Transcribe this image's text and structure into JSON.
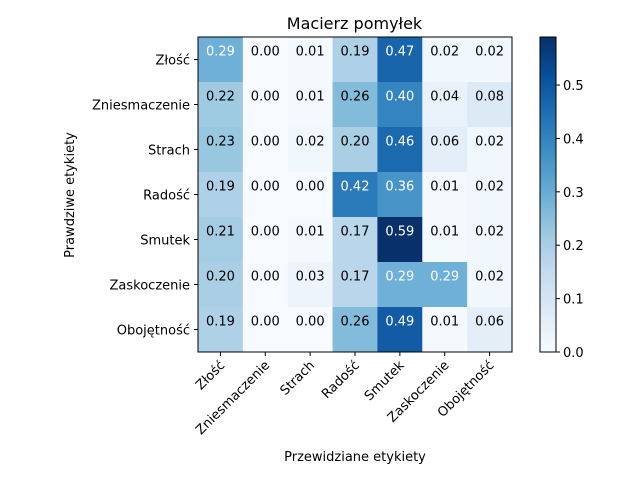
{
  "chart_data": {
    "type": "heatmap",
    "title": "Macierz pomyłek",
    "xlabel": "Przewidziane etykiety",
    "ylabel": "Prawdziwe etykiety",
    "x_categories": [
      "Złość",
      "Zniesmaczenie",
      "Strach",
      "Radość",
      "Smutek",
      "Zaskoczenie",
      "Obojętność"
    ],
    "y_categories": [
      "Złość",
      "Zniesmaczenie",
      "Strach",
      "Radość",
      "Smutek",
      "Zaskoczenie",
      "Obojętność"
    ],
    "values": [
      [
        0.29,
        0.0,
        0.01,
        0.19,
        0.47,
        0.02,
        0.02
      ],
      [
        0.22,
        0.0,
        0.01,
        0.26,
        0.4,
        0.04,
        0.08
      ],
      [
        0.23,
        0.0,
        0.02,
        0.2,
        0.46,
        0.06,
        0.02
      ],
      [
        0.19,
        0.0,
        0.0,
        0.42,
        0.36,
        0.01,
        0.02
      ],
      [
        0.21,
        0.0,
        0.01,
        0.17,
        0.59,
        0.01,
        0.02
      ],
      [
        0.2,
        0.0,
        0.03,
        0.17,
        0.29,
        0.29,
        0.02
      ],
      [
        0.19,
        0.0,
        0.0,
        0.26,
        0.49,
        0.01,
        0.06
      ]
    ],
    "value_format": "2 decimals",
    "colormap": "Blues",
    "colorbar": {
      "range": [
        0.0,
        0.59
      ],
      "ticks": [
        0.0,
        0.1,
        0.2,
        0.3,
        0.4,
        0.5
      ],
      "tick_labels": [
        "0.0",
        "0.1",
        "0.2",
        "0.3",
        "0.4",
        "0.5"
      ]
    },
    "grid": false
  }
}
